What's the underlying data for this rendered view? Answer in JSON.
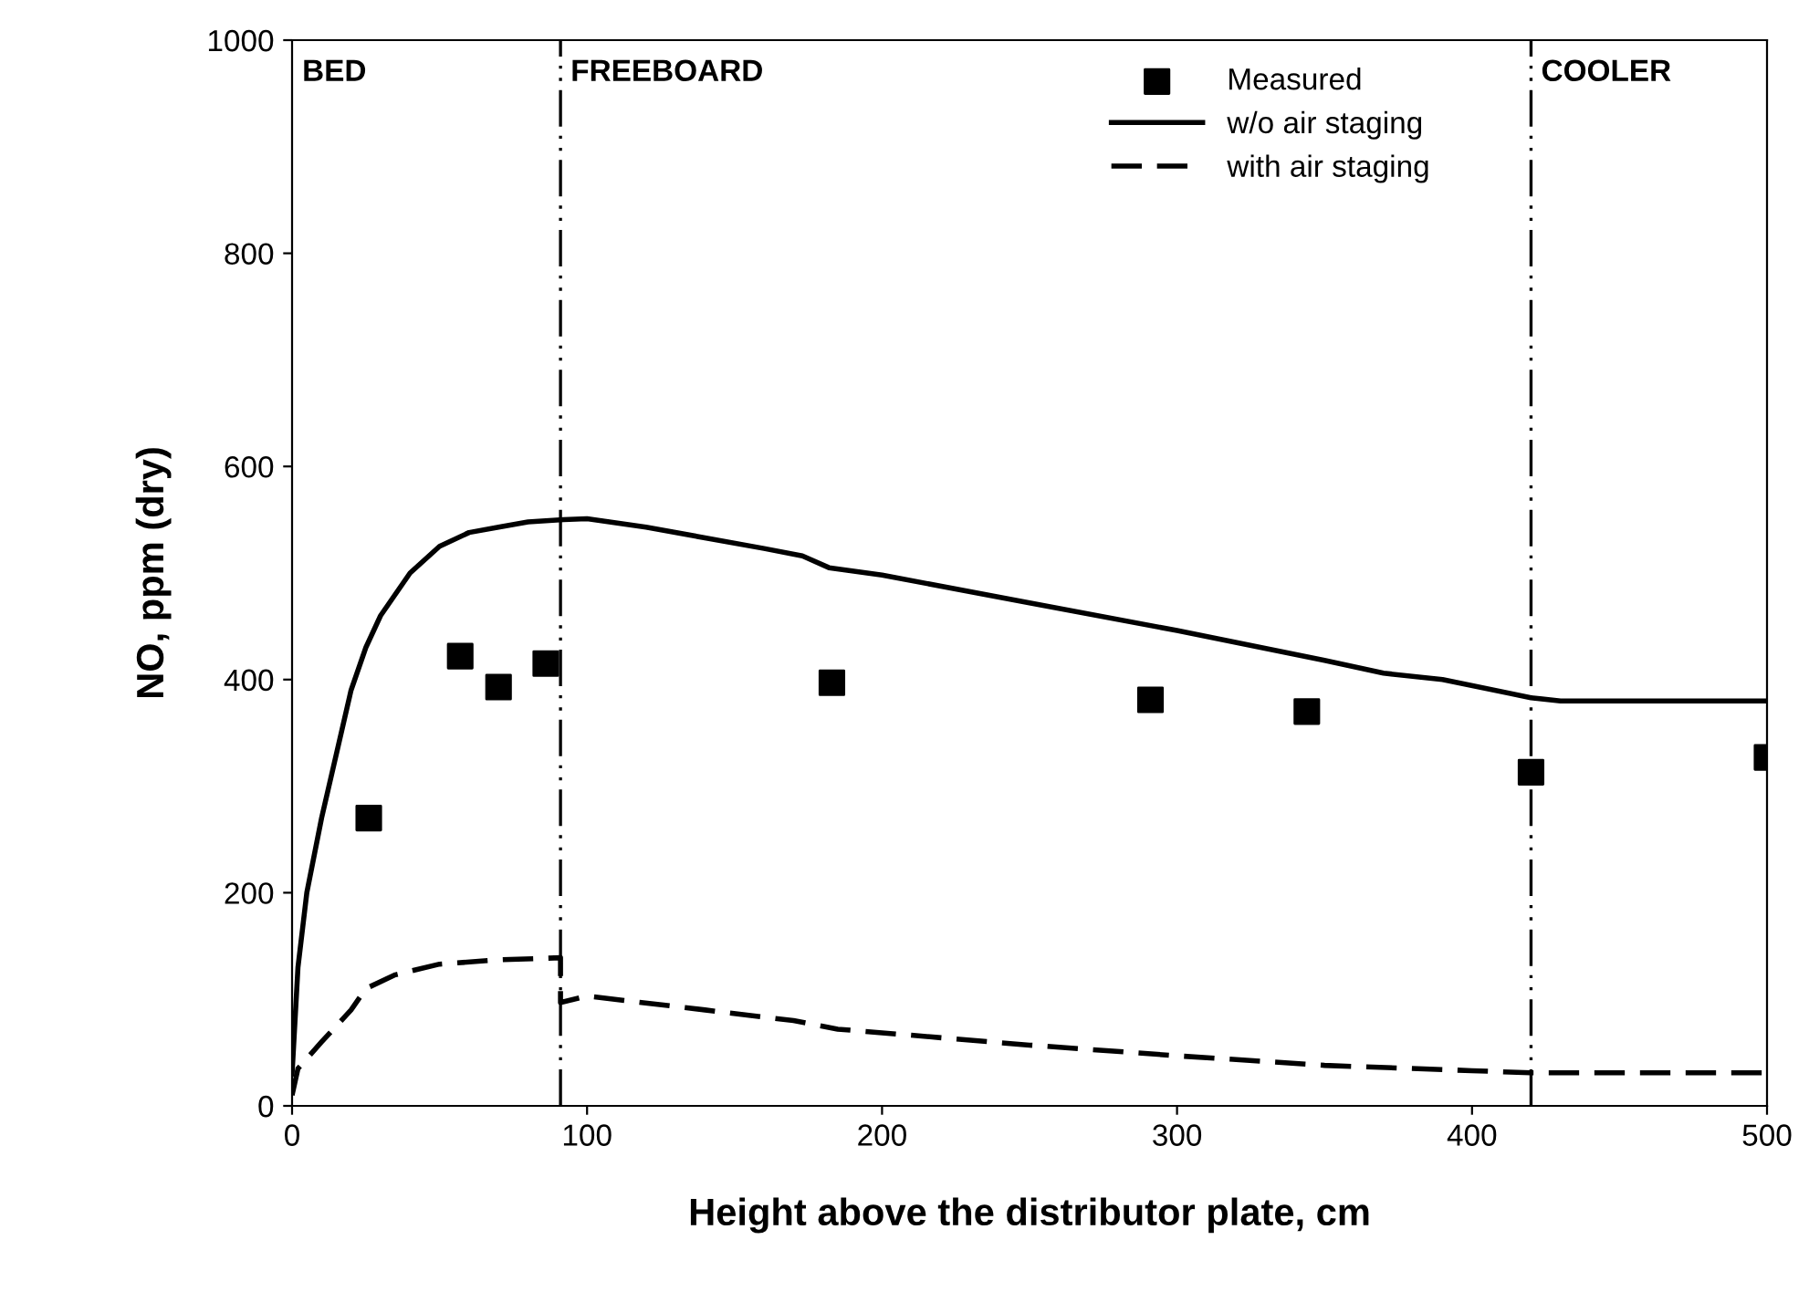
{
  "chart_data": {
    "type": "line",
    "xlabel": "Height above the distributor plate, cm",
    "ylabel": "NO, ppm (dry)",
    "xlim": [
      0,
      500
    ],
    "ylim": [
      0,
      1000
    ],
    "xticks": [
      0,
      100,
      200,
      300,
      400,
      500
    ],
    "yticks": [
      0,
      200,
      400,
      600,
      800,
      1000
    ],
    "grid": false,
    "legend": "top right",
    "series": [
      {
        "name": "Measured",
        "type": "scatter",
        "marker": "square",
        "color": "#000000",
        "x": [
          26,
          57,
          70,
          86,
          183,
          291,
          344,
          420,
          500
        ],
        "values": [
          270,
          422,
          393,
          415,
          397,
          381,
          370,
          313,
          327
        ]
      },
      {
        "name": "w/o air staging",
        "line_style": "solid",
        "color": "#000000",
        "x": [
          0,
          2,
          5,
          10,
          15,
          20,
          25,
          30,
          40,
          50,
          60,
          70,
          80,
          92,
          100,
          120,
          140,
          160,
          173,
          182,
          200,
          250,
          300,
          350,
          370,
          390,
          420,
          430,
          500
        ],
        "values": [
          30,
          130,
          200,
          270,
          330,
          390,
          430,
          460,
          500,
          525,
          538,
          543,
          548,
          550,
          551,
          543,
          533,
          523,
          516,
          505,
          498,
          472,
          446,
          418,
          406,
          400,
          383,
          380,
          380
        ]
      },
      {
        "name": "with air staging",
        "line_style": "dashed",
        "color": "#000000",
        "x": [
          0,
          2,
          10,
          20,
          25,
          35,
          50,
          70,
          91,
          91,
          100,
          140,
          170,
          185,
          250,
          300,
          350,
          400,
          420,
          500
        ],
        "values": [
          10,
          35,
          60,
          90,
          110,
          123,
          133,
          137,
          139,
          97,
          103,
          90,
          80,
          72,
          57,
          47,
          38,
          33,
          31,
          31
        ]
      }
    ],
    "ref_lines": [
      {
        "axis": "x",
        "value": 91,
        "line_style": "dashdotdot",
        "color": "#000000"
      },
      {
        "axis": "x",
        "value": 420,
        "line_style": "dashdotdot",
        "color": "#000000"
      }
    ],
    "annotations": [
      "BED",
      "FREEBOARD",
      "COOLER"
    ]
  }
}
